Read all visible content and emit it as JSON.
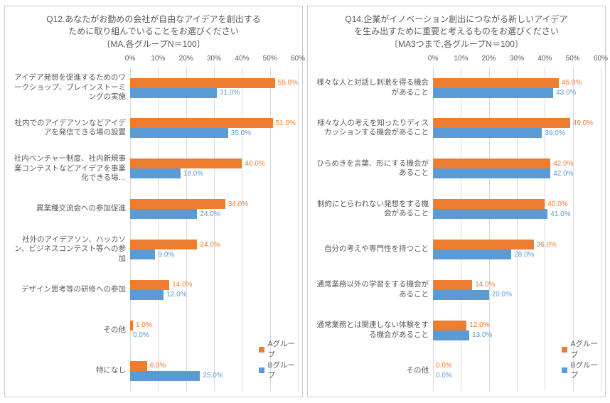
{
  "colors": {
    "seriesA": "#ed7d31",
    "seriesB": "#5b9bd5",
    "text": "#595959",
    "grid": "#d9d9d9",
    "border": "#cccccc",
    "background": "#ffffff"
  },
  "legend": {
    "a": "Aグルー\nプ",
    "b": "Bグルー\nプ"
  },
  "axis": {
    "min": 0,
    "max": 60,
    "step": 10,
    "ticks": [
      "0%",
      "10%",
      "20%",
      "30%",
      "40%",
      "50%",
      "60%"
    ]
  },
  "left": {
    "title": "Q12.あなたがお勤めの会社が自由なアイデアを創出する\nために取り組んでいることをお選びください\n〔MA,各グループN＝100〕",
    "categories": [
      {
        "label": "アイデア発想を促進するためのワークショップ、ブレインストーミングの実施",
        "a": 55.0,
        "b": 31.0
      },
      {
        "label": "社内でのアイデアソンなどアイデアを発信できる場の設置",
        "a": 51.0,
        "b": 35.0
      },
      {
        "label": "社内ベンチャー制度、社内新規事業コンテストなどアイデアを事業化できる場…",
        "a": 40.0,
        "b": 18.0
      },
      {
        "label": "異業種交流会への参加促進",
        "a": 34.0,
        "b": 24.0
      },
      {
        "label": "社外のアイデアソン、ハッカソン、ビジネスコンテスト等への参加",
        "a": 24.0,
        "b": 9.0
      },
      {
        "label": "デザイン思考等の研修への参加",
        "a": 14.0,
        "b": 12.0
      },
      {
        "label": "その他",
        "a": 1.0,
        "b": 0.0
      },
      {
        "label": "特になし",
        "a": 6.0,
        "b": 25.0
      }
    ]
  },
  "right": {
    "title": "Q14.企業がイノベーション創出につながる新しいアイデア\nを生み出すために重要と考えるものをお選びください\n〔MA3つまで,各グループN＝100〕",
    "categories": [
      {
        "label": "様々な人と対話し刺激を得る機会があること",
        "a": 45.0,
        "b": 43.0
      },
      {
        "label": "様々な人の考えを知ったりディスカッションする機会があること",
        "a": 49.0,
        "b": 39.0
      },
      {
        "label": "ひらめきを言葉、形にする機会があること",
        "a": 42.0,
        "b": 42.0
      },
      {
        "label": "制約にとらわれない発想をする機会があること",
        "a": 40.0,
        "b": 41.0
      },
      {
        "label": "自分の考えや専門性を持つこと",
        "a": 36.0,
        "b": 28.0
      },
      {
        "label": "通常業務以外の学習をする機会があること",
        "a": 14.0,
        "b": 20.0
      },
      {
        "label": "通常業務とは関連しない体験をする機会があること",
        "a": 12.0,
        "b": 13.0
      },
      {
        "label": "その他",
        "a": 0.0,
        "b": 0.0
      }
    ]
  }
}
